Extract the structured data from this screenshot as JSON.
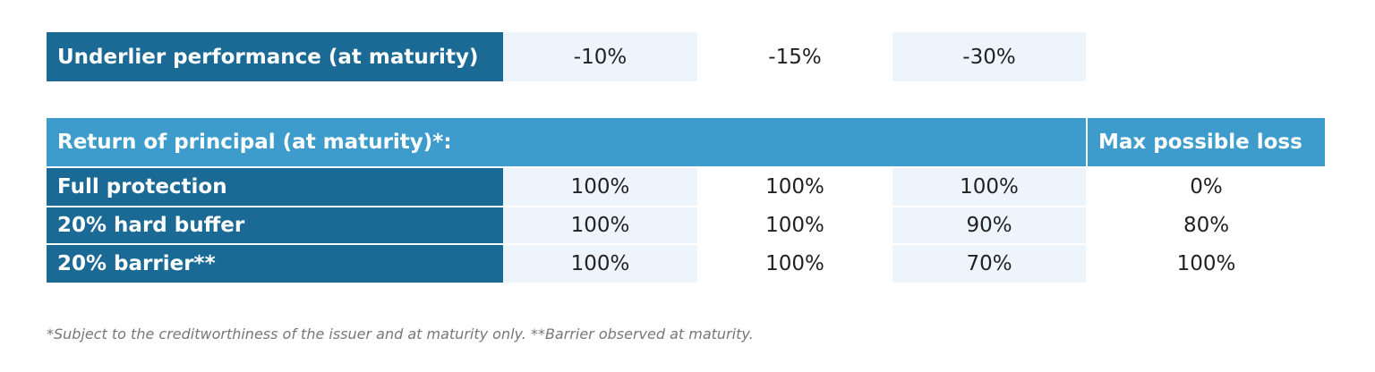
{
  "underlier": {
    "label": "Underlier performance (at maturity)",
    "values": [
      "-10%",
      "-15%",
      "-30%"
    ]
  },
  "table": {
    "header": "Return of principal (at maturity)*:",
    "max_loss_header": "Max possible loss",
    "rows": [
      [
        "Full protection",
        "100%",
        "100%",
        "100%",
        "0%"
      ],
      [
        "20% hard buffer",
        "100%",
        "100%",
        "90%",
        "80%"
      ],
      [
        "20% barrier**",
        "100%",
        "100%",
        "70%",
        "100%"
      ]
    ]
  },
  "footnote": "*Subject to the creditworthiness of the issuer and at maturity only. **Barrier observed at maturity."
}
